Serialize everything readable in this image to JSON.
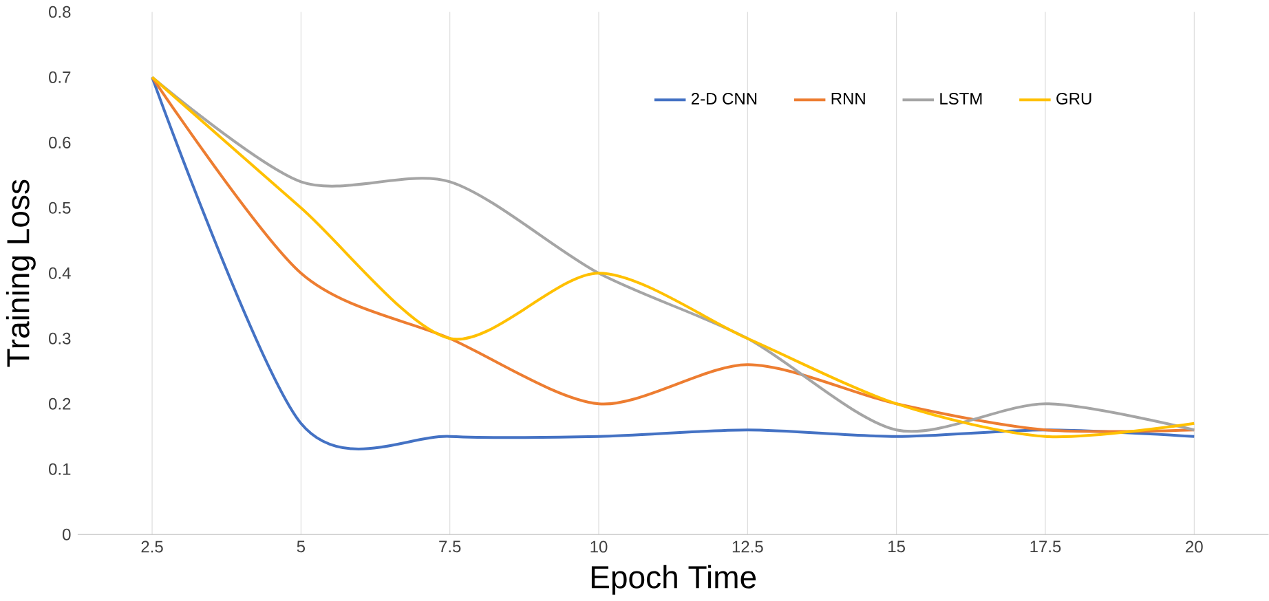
{
  "chart_data": {
    "type": "line",
    "xlabel": "Epoch Time",
    "ylabel": "Training Loss",
    "categories": [
      "2.5",
      "5",
      "7.5",
      "10",
      "12.5",
      "15",
      "17.5",
      "20"
    ],
    "series": [
      {
        "name": "2-D CNN",
        "color": "#4472c4",
        "values": [
          0.7,
          0.17,
          0.15,
          0.15,
          0.16,
          0.15,
          0.16,
          0.15
        ]
      },
      {
        "name": "RNN",
        "color": "#ed7d31",
        "values": [
          0.7,
          0.4,
          0.3,
          0.2,
          0.26,
          0.2,
          0.16,
          0.16
        ]
      },
      {
        "name": "LSTM",
        "color": "#a5a5a5",
        "values": [
          0.7,
          0.54,
          0.54,
          0.4,
          0.3,
          0.16,
          0.2,
          0.16
        ]
      },
      {
        "name": "GRU",
        "color": "#ffc000",
        "values": [
          0.7,
          0.5,
          0.3,
          0.4,
          0.3,
          0.2,
          0.15,
          0.17
        ]
      }
    ],
    "ylim": [
      0,
      0.8
    ],
    "yticks": [
      0,
      0.1,
      0.2,
      0.3,
      0.4,
      0.5,
      0.6,
      0.7,
      0.8
    ],
    "grid": "x",
    "legend": "top right",
    "marker": "none",
    "line_style": "solid"
  }
}
